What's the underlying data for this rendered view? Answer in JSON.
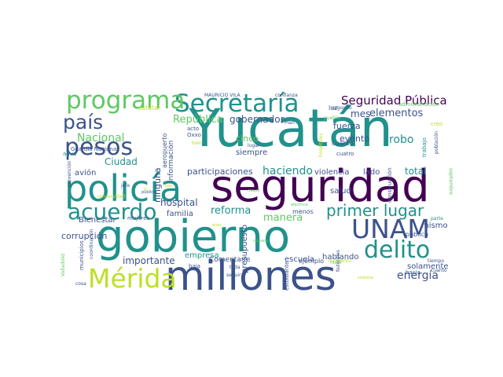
{
  "wordcloud": {
    "palette": [
      "#440154",
      "#3b528b",
      "#21918c",
      "#5ec962",
      "#fde725"
    ],
    "words": [
      {
        "text": "Yucatán",
        "color": "#21918c"
      },
      {
        "text": "seguridad",
        "color": "#440154"
      },
      {
        "text": "gobierno",
        "color": "#21918c"
      },
      {
        "text": "millones",
        "color": "#3b528b"
      },
      {
        "text": "policía",
        "color": "#21918c"
      },
      {
        "text": "Secretaría",
        "color": "#21918c"
      },
      {
        "text": "programa",
        "color": "#5ec962"
      },
      {
        "text": "pesos",
        "color": "#3b528b"
      },
      {
        "text": "acuerdo",
        "color": "#21918c"
      },
      {
        "text": "país",
        "color": "#3b528b"
      },
      {
        "text": "UNAM",
        "color": "#3b528b"
      },
      {
        "text": "delito",
        "color": "#21918c"
      },
      {
        "text": "Mérida",
        "color": "#bddf26"
      },
      {
        "text": "primer lugar",
        "color": "#21918c"
      },
      {
        "text": "Seguridad Pública",
        "color": "#440154"
      },
      {
        "text": "Nacional",
        "color": "#5ec962"
      },
      {
        "text": "República",
        "color": "#5ec962"
      },
      {
        "text": "gobernador",
        "color": "#3b528b"
      },
      {
        "text": "elementos",
        "color": "#3b528b"
      },
      {
        "text": "mes",
        "color": "#3b528b"
      },
      {
        "text": "fuerza",
        "color": "#3b528b"
      },
      {
        "text": "robo",
        "color": "#21918c"
      },
      {
        "text": "evento",
        "color": "#3b528b"
      },
      {
        "text": "energía",
        "color": "#3b528b"
      },
      {
        "text": "reforma",
        "color": "#21918c"
      },
      {
        "text": "haciendo",
        "color": "#21918c"
      },
      {
        "text": "manera",
        "color": "#5ec962"
      },
      {
        "text": "hospital",
        "color": "#3b528b"
      },
      {
        "text": "importante",
        "color": "#3b528b"
      },
      {
        "text": "Ciudad",
        "color": "#21918c"
      },
      {
        "text": "total",
        "color": "#21918c"
      },
      {
        "text": "participaciones",
        "color": "#3b528b"
      },
      {
        "text": "corrupción",
        "color": "#3b528b"
      },
      {
        "text": "avión",
        "color": "#3b528b"
      },
      {
        "text": "cinco",
        "color": "#5ec962"
      },
      {
        "text": "siempre",
        "color": "#3b528b"
      },
      {
        "text": "violencia",
        "color": "#3b528b"
      },
      {
        "text": "lado",
        "color": "#3b528b"
      },
      {
        "text": "solamente",
        "color": "#3b528b"
      },
      {
        "text": "hablando",
        "color": "#3b528b"
      },
      {
        "text": "empresa",
        "color": "#21918c"
      },
      {
        "text": "familia",
        "color": "#3b528b"
      },
      {
        "text": "Bienestar",
        "color": "#3b528b"
      },
      {
        "text": "ninguna",
        "color": "#3b528b"
      },
      {
        "text": "información",
        "color": "#3b528b"
      },
      {
        "text": "presupuesto",
        "color": "#3b528b"
      },
      {
        "text": "escuela",
        "color": "#3b528b"
      },
      {
        "text": "mismo",
        "color": "#3b528b"
      },
      {
        "text": "salud",
        "color": "#3b528b"
      },
      {
        "text": "Comentarle",
        "color": "#3b528b"
      },
      {
        "text": "menos",
        "color": "#3b528b"
      },
      {
        "text": "ejemplo",
        "color": "#3b528b"
      },
      {
        "text": "MAURICIO VILA",
        "color": "#3b528b"
      },
      {
        "text": "confianza",
        "color": "#3b528b"
      },
      {
        "text": "estatal",
        "color": "#bddf26"
      },
      {
        "text": "segundo",
        "color": "#3b528b"
      },
      {
        "text": "administración",
        "color": "#5ec962"
      },
      {
        "text": "Guardia Nacional",
        "color": "#3b528b"
      },
      {
        "text": "agua",
        "color": "#21918c"
      },
      {
        "text": "acto",
        "color": "#3b528b"
      },
      {
        "text": "Oxxo",
        "color": "#3b528b"
      },
      {
        "text": "bien",
        "color": "#bddf26"
      },
      {
        "text": "Plan",
        "color": "#3b528b"
      },
      {
        "text": "luz",
        "color": "#3b528b"
      },
      {
        "text": "pueblo",
        "color": "#5ec962"
      },
      {
        "text": "cuánto",
        "color": "#3b528b"
      },
      {
        "text": "cuatro",
        "color": "#3b528b"
      },
      {
        "text": "creo",
        "color": "#bddf26"
      },
      {
        "text": "lugar",
        "color": "#3b528b"
      },
      {
        "text": "trabajo",
        "color": "#21918c"
      },
      {
        "text": "población",
        "color": "#3b528b"
      },
      {
        "text": "septiembre",
        "color": "#5ec962"
      },
      {
        "text": "hospitales",
        "color": "#bddf26"
      },
      {
        "text": "aeropuerto",
        "color": "#3b528b"
      },
      {
        "text": "prevención",
        "color": "#3b528b"
      },
      {
        "text": "jefe",
        "color": "#3b528b"
      },
      {
        "text": "universidad",
        "color": "#bddf26"
      },
      {
        "text": "público",
        "color": "#3b528b"
      },
      {
        "text": "paz",
        "color": "#bddf26"
      },
      {
        "text": "mayor",
        "color": "#5ec962"
      },
      {
        "text": "eléctrica",
        "color": "#5ec962"
      },
      {
        "text": "federales",
        "color": "#3b528b"
      },
      {
        "text": "construcción",
        "color": "#3b528b"
      },
      {
        "text": "hacia",
        "color": "#3b528b"
      },
      {
        "text": "cuanto",
        "color": "#3b528b"
      },
      {
        "text": "tiempo",
        "color": "#3b528b"
      },
      {
        "text": "pública",
        "color": "#3b528b"
      },
      {
        "text": "parte",
        "color": "#21918c"
      },
      {
        "text": "municipios",
        "color": "#3b528b"
      },
      {
        "text": "coordinación",
        "color": "#3b528b"
      },
      {
        "text": "mujeres",
        "color": "#3b528b"
      },
      {
        "text": "años",
        "color": "#bddf26"
      },
      {
        "text": "número",
        "color": "#5ec962"
      },
      {
        "text": "baja",
        "color": "#3b528b"
      },
      {
        "text": "toda",
        "color": "#3b528b"
      },
      {
        "text": "seguir",
        "color": "#3b528b"
      },
      {
        "text": "estudiante",
        "color": "#3b528b"
      },
      {
        "text": "momento",
        "color": "#bddf26"
      },
      {
        "text": "nivel",
        "color": "#5ec962"
      },
      {
        "text": "sistema",
        "color": "#bddf26"
      },
      {
        "text": "cosa",
        "color": "#3b528b"
      },
      {
        "text": "Valladolid",
        "color": "#5ec962"
      },
      {
        "text": "ir",
        "color": "#bddf26"
      }
    ]
  }
}
